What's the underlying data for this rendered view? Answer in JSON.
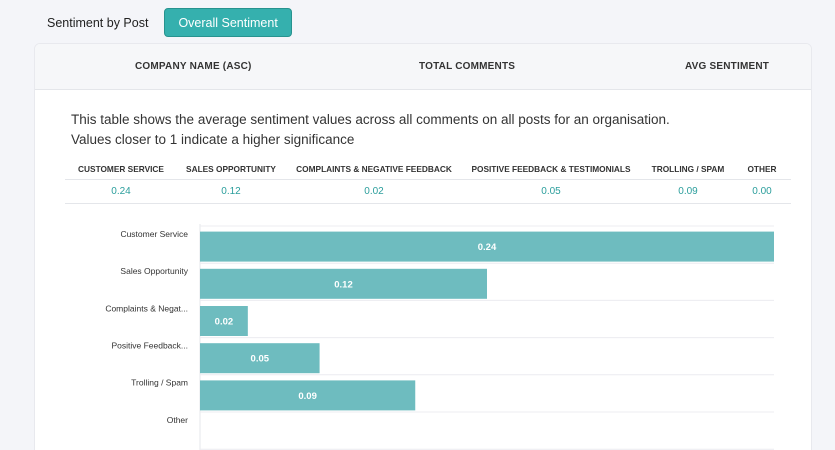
{
  "tabs": [
    {
      "label": "Sentiment by Post",
      "active": false
    },
    {
      "label": "Overall Sentiment",
      "active": true
    }
  ],
  "table_header": {
    "company": "COMPANY NAME (ASC)",
    "total": "TOTAL COMMENTS",
    "avg": "AVG SENTIMENT"
  },
  "description": {
    "line1": "This table shows the average sentiment values across all comments on all posts for an organisation.",
    "line2": "Values closer to 1 indicate a higher significance"
  },
  "categories_table": [
    {
      "header": "CUSTOMER SERVICE",
      "value": "0.24"
    },
    {
      "header": "SALES OPPORTUNITY",
      "value": "0.12"
    },
    {
      "header": "COMPLAINTS & NEGATIVE FEEDBACK",
      "value": "0.02"
    },
    {
      "header": "POSITIVE FEEDBACK & TESTIMONIALS",
      "value": "0.05"
    },
    {
      "header": "TROLLING / SPAM",
      "value": "0.09"
    },
    {
      "header": "OTHER",
      "value": "0.00"
    }
  ],
  "colors": {
    "accent": "#35b0ae",
    "bar": "#6ebcbf"
  },
  "chart_data": {
    "type": "bar",
    "orientation": "horizontal",
    "categories": [
      "Customer Service",
      "Sales Opportunity",
      "Complaints & Negat...",
      "Positive Feedback...",
      "Trolling / Spam",
      "Other"
    ],
    "values": [
      0.24,
      0.12,
      0.02,
      0.05,
      0.09,
      0.0
    ],
    "value_labels": [
      "0.24",
      "0.12",
      "0.02",
      "0.05",
      "0.09",
      ""
    ],
    "xlim": [
      0,
      0.24
    ],
    "grid": true
  }
}
